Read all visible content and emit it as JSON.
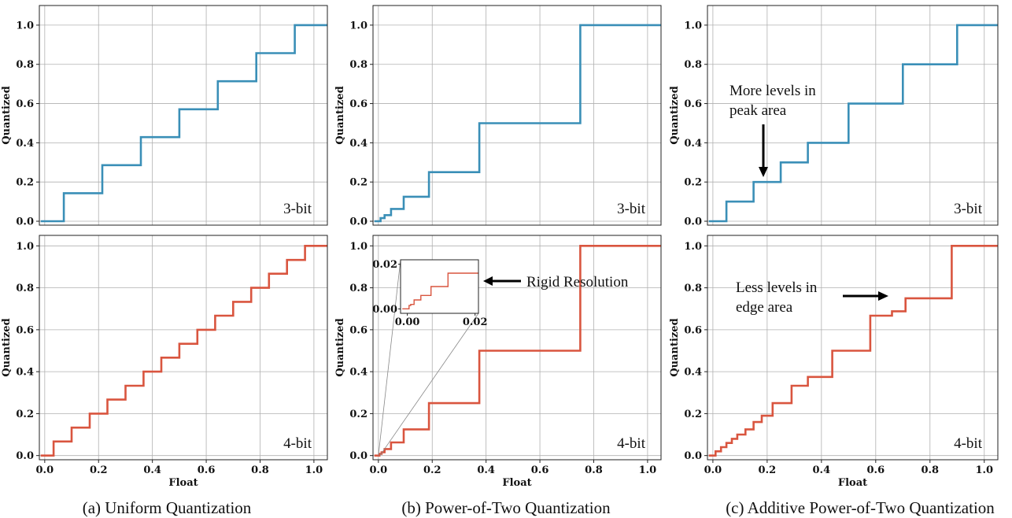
{
  "colors": {
    "blue": "#3a8fb7",
    "red": "#d9553f"
  },
  "captions": [
    "(a) Uniform Quantization",
    "(b) Power-of-Two Quantization",
    "(c) Additive Power-of-Two Quantization"
  ],
  "annotations": {
    "rigid": "Rigid Resolution",
    "more_line1": "More levels in",
    "more_line2": "peak area",
    "less_line1": "Less levels in",
    "less_line2": "edge area"
  },
  "chart_data": [
    {
      "id": "uniform-3bit",
      "type": "line",
      "column": 0,
      "row": 0,
      "color": "blue",
      "bit_label": "3-bit",
      "xlabel": "",
      "ylabel": "Quantized",
      "xlim": [
        -0.02,
        1.05
      ],
      "ylim": [
        -0.02,
        1.1
      ],
      "yticks": [
        0.0,
        0.2,
        0.4,
        0.6,
        0.8,
        1.0
      ],
      "ytick_labels": [
        "0.0",
        "0.2",
        "0.4",
        "0.6",
        "0.8",
        "1.0"
      ],
      "xticks": [],
      "xtick_labels": [],
      "thresholds": [
        0.071,
        0.214,
        0.357,
        0.5,
        0.643,
        0.786,
        0.929
      ],
      "levels": [
        0.0,
        0.143,
        0.286,
        0.429,
        0.571,
        0.714,
        0.857,
        1.0
      ]
    },
    {
      "id": "uniform-4bit",
      "type": "line",
      "column": 0,
      "row": 1,
      "color": "red",
      "bit_label": "4-bit",
      "xlabel": "Float",
      "ylabel": "Quantized",
      "xlim": [
        -0.02,
        1.05
      ],
      "ylim": [
        -0.02,
        1.05
      ],
      "yticks": [
        0.0,
        0.2,
        0.4,
        0.6,
        0.8,
        1.0
      ],
      "ytick_labels": [
        "0.0",
        "0.2",
        "0.4",
        "0.6",
        "0.8",
        "1.0"
      ],
      "xticks": [
        0.0,
        0.2,
        0.4,
        0.6,
        0.8,
        1.0
      ],
      "xtick_labels": [
        "0.0",
        "0.2",
        "0.4",
        "0.6",
        "0.8",
        "1.0"
      ],
      "thresholds": [
        0.033,
        0.1,
        0.167,
        0.233,
        0.3,
        0.367,
        0.433,
        0.5,
        0.567,
        0.633,
        0.7,
        0.767,
        0.833,
        0.9,
        0.967
      ],
      "levels": [
        0.0,
        0.067,
        0.133,
        0.2,
        0.267,
        0.333,
        0.4,
        0.467,
        0.533,
        0.6,
        0.667,
        0.733,
        0.8,
        0.867,
        0.933,
        1.0
      ]
    },
    {
      "id": "pot-3bit",
      "type": "line",
      "column": 1,
      "row": 0,
      "color": "blue",
      "bit_label": "3-bit",
      "xlabel": "",
      "ylabel": "Quantized",
      "xlim": [
        -0.02,
        1.05
      ],
      "ylim": [
        -0.02,
        1.1
      ],
      "yticks": [
        0.0,
        0.2,
        0.4,
        0.6,
        0.8,
        1.0
      ],
      "ytick_labels": [
        "0.0",
        "0.2",
        "0.4",
        "0.6",
        "0.8",
        "1.0"
      ],
      "xticks": [],
      "xtick_labels": [],
      "thresholds": [
        0.008,
        0.023,
        0.047,
        0.094,
        0.188,
        0.375,
        0.75
      ],
      "levels": [
        0.0,
        0.0156,
        0.031,
        0.0625,
        0.125,
        0.25,
        0.5,
        1.0
      ]
    },
    {
      "id": "pot-4bit",
      "type": "line",
      "column": 1,
      "row": 1,
      "color": "red",
      "bit_label": "4-bit",
      "xlabel": "Float",
      "ylabel": "Quantized",
      "xlim": [
        -0.02,
        1.05
      ],
      "ylim": [
        -0.02,
        1.05
      ],
      "yticks": [
        0.0,
        0.2,
        0.4,
        0.6,
        0.8,
        1.0
      ],
      "ytick_labels": [
        "0.0",
        "0.2",
        "0.4",
        "0.6",
        "0.8",
        "1.0"
      ],
      "xticks": [
        0.0,
        0.2,
        0.4,
        0.6,
        0.8,
        1.0
      ],
      "xtick_labels": [
        "0.0",
        "0.2",
        "0.4",
        "0.6",
        "0.8",
        "1.0"
      ],
      "thresholds": [
        0.004,
        0.012,
        0.023,
        0.047,
        0.094,
        0.188,
        0.375,
        0.75
      ],
      "levels": [
        0.0,
        0.008,
        0.0156,
        0.031,
        0.0625,
        0.125,
        0.25,
        0.5,
        1.0
      ],
      "inset": {
        "xlim": [
          -0.002,
          0.021
        ],
        "ylim": [
          -0.002,
          0.022
        ],
        "xticks": [
          0.0,
          0.02
        ],
        "xtick_labels": [
          "0.00",
          "0.02"
        ],
        "yticks": [
          0.0,
          0.02
        ],
        "ytick_labels": [
          "0.00",
          "0.02"
        ],
        "thresholds": [
          0.0005,
          0.001,
          0.002,
          0.004,
          0.007,
          0.012
        ],
        "levels": [
          0.0,
          0.0015,
          0.002,
          0.004,
          0.006,
          0.01,
          0.016
        ]
      }
    },
    {
      "id": "apot-3bit",
      "type": "line",
      "column": 2,
      "row": 0,
      "color": "blue",
      "bit_label": "3-bit",
      "xlabel": "",
      "ylabel": "Quantized",
      "xlim": [
        -0.02,
        1.05
      ],
      "ylim": [
        -0.02,
        1.1
      ],
      "yticks": [
        0.0,
        0.2,
        0.4,
        0.6,
        0.8,
        1.0
      ],
      "ytick_labels": [
        "0.0",
        "0.2",
        "0.4",
        "0.6",
        "0.8",
        "1.0"
      ],
      "xticks": [],
      "xtick_labels": [],
      "thresholds": [
        0.05,
        0.15,
        0.25,
        0.35,
        0.5,
        0.7,
        0.9
      ],
      "levels": [
        0.0,
        0.1,
        0.2,
        0.3,
        0.4,
        0.6,
        0.8,
        1.0
      ]
    },
    {
      "id": "apot-4bit",
      "type": "line",
      "column": 2,
      "row": 1,
      "color": "red",
      "bit_label": "4-bit",
      "xlabel": "Float",
      "ylabel": "Quantized",
      "xlim": [
        -0.02,
        1.05
      ],
      "ylim": [
        -0.02,
        1.05
      ],
      "yticks": [
        0.0,
        0.2,
        0.4,
        0.6,
        0.8,
        1.0
      ],
      "ytick_labels": [
        "0.0",
        "0.2",
        "0.4",
        "0.6",
        "0.8",
        "1.0"
      ],
      "xticks": [
        0.0,
        0.2,
        0.4,
        0.6,
        0.8,
        1.0
      ],
      "xtick_labels": [
        "0.0",
        "0.2",
        "0.4",
        "0.6",
        "0.8",
        "1.0"
      ],
      "thresholds": [
        0.01,
        0.03,
        0.05,
        0.07,
        0.09,
        0.12,
        0.15,
        0.18,
        0.22,
        0.29,
        0.35,
        0.44,
        0.58,
        0.66,
        0.71,
        0.88
      ],
      "levels": [
        0.0,
        0.02,
        0.04,
        0.06,
        0.08,
        0.1,
        0.125,
        0.16,
        0.19,
        0.25,
        0.333,
        0.375,
        0.5,
        0.667,
        0.688,
        0.75,
        1.0
      ]
    }
  ]
}
